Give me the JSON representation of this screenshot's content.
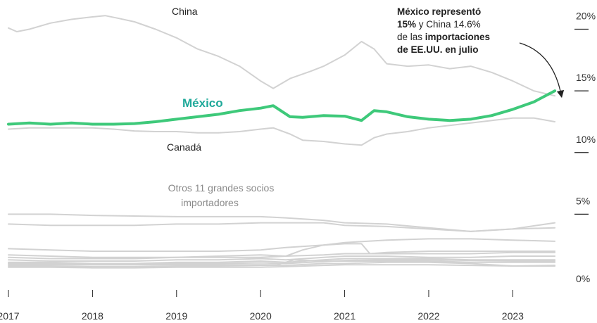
{
  "chart_data": {
    "type": "line",
    "x_ticks": [
      "2017",
      "2018",
      "2019",
      "2020",
      "2021",
      "2022",
      "2023"
    ],
    "y_ticks": [
      {
        "value": 20,
        "label": "20%"
      },
      {
        "value": 15,
        "label": "15%"
      },
      {
        "value": 10,
        "label": "10%"
      },
      {
        "value": 5,
        "label": "5%"
      },
      {
        "value": 0,
        "label": "0%"
      }
    ],
    "ylim": [
      0,
      21
    ],
    "xlim": [
      2017.0,
      2023.6
    ],
    "colors": {
      "highlight": "#3ec97a",
      "highlight_label": "#1fa99a",
      "context": "#d2d2d2",
      "text": "#222222",
      "muted_text": "#8a8a8a"
    },
    "labels": {
      "china": "China",
      "mexico": "México",
      "canada": "Canadá",
      "others_line1": "Otros 11 grandes socios",
      "others_line2": "importadores"
    },
    "annotation": {
      "line1": "México representó",
      "line2_bold": "15%",
      "line2_rest": " y China 14.6%",
      "line3_pre": "de las ",
      "line3_bold": "importaciones",
      "line4": "de EE.UU. en julio"
    },
    "series": [
      {
        "name": "México",
        "highlight": true,
        "points": [
          [
            2017.0,
            12.3
          ],
          [
            2017.25,
            12.4
          ],
          [
            2017.5,
            12.3
          ],
          [
            2017.75,
            12.4
          ],
          [
            2018.0,
            12.3
          ],
          [
            2018.25,
            12.3
          ],
          [
            2018.5,
            12.35
          ],
          [
            2018.75,
            12.5
          ],
          [
            2019.0,
            12.7
          ],
          [
            2019.25,
            12.9
          ],
          [
            2019.5,
            13.1
          ],
          [
            2019.75,
            13.4
          ],
          [
            2020.0,
            13.6
          ],
          [
            2020.15,
            13.8
          ],
          [
            2020.35,
            12.9
          ],
          [
            2020.5,
            12.85
          ],
          [
            2020.75,
            13.0
          ],
          [
            2021.0,
            12.95
          ],
          [
            2021.2,
            12.6
          ],
          [
            2021.35,
            13.4
          ],
          [
            2021.5,
            13.3
          ],
          [
            2021.75,
            12.9
          ],
          [
            2022.0,
            12.7
          ],
          [
            2022.25,
            12.6
          ],
          [
            2022.5,
            12.7
          ],
          [
            2022.75,
            13.0
          ],
          [
            2023.0,
            13.5
          ],
          [
            2023.25,
            14.1
          ],
          [
            2023.5,
            15.0
          ]
        ]
      },
      {
        "name": "China",
        "points": [
          [
            2017.0,
            20.1
          ],
          [
            2017.1,
            19.8
          ],
          [
            2017.25,
            20.0
          ],
          [
            2017.5,
            20.5
          ],
          [
            2017.75,
            20.8
          ],
          [
            2018.0,
            21.0
          ],
          [
            2018.15,
            21.1
          ],
          [
            2018.3,
            20.9
          ],
          [
            2018.5,
            20.6
          ],
          [
            2018.75,
            20.0
          ],
          [
            2019.0,
            19.3
          ],
          [
            2019.25,
            18.4
          ],
          [
            2019.5,
            17.8
          ],
          [
            2019.75,
            17.0
          ],
          [
            2020.0,
            15.8
          ],
          [
            2020.15,
            15.2
          ],
          [
            2020.35,
            16.0
          ],
          [
            2020.6,
            16.6
          ],
          [
            2020.75,
            17.0
          ],
          [
            2021.0,
            17.9
          ],
          [
            2021.2,
            19.0
          ],
          [
            2021.35,
            18.4
          ],
          [
            2021.5,
            17.2
          ],
          [
            2021.75,
            17.0
          ],
          [
            2022.0,
            17.1
          ],
          [
            2022.25,
            16.8
          ],
          [
            2022.5,
            17.0
          ],
          [
            2022.75,
            16.5
          ],
          [
            2023.0,
            15.8
          ],
          [
            2023.25,
            15.0
          ],
          [
            2023.5,
            14.6
          ]
        ]
      },
      {
        "name": "Canadá",
        "points": [
          [
            2017.0,
            11.9
          ],
          [
            2017.25,
            12.0
          ],
          [
            2017.5,
            12.0
          ],
          [
            2017.75,
            12.0
          ],
          [
            2018.0,
            12.0
          ],
          [
            2018.25,
            11.9
          ],
          [
            2018.5,
            11.75
          ],
          [
            2018.75,
            11.7
          ],
          [
            2019.0,
            11.7
          ],
          [
            2019.25,
            11.6
          ],
          [
            2019.5,
            11.6
          ],
          [
            2019.75,
            11.7
          ],
          [
            2020.0,
            11.9
          ],
          [
            2020.15,
            12.0
          ],
          [
            2020.35,
            11.5
          ],
          [
            2020.5,
            11.0
          ],
          [
            2020.75,
            10.9
          ],
          [
            2021.0,
            10.7
          ],
          [
            2021.2,
            10.6
          ],
          [
            2021.35,
            11.2
          ],
          [
            2021.5,
            11.5
          ],
          [
            2021.75,
            11.7
          ],
          [
            2022.0,
            12.0
          ],
          [
            2022.25,
            12.2
          ],
          [
            2022.5,
            12.4
          ],
          [
            2022.75,
            12.6
          ],
          [
            2023.0,
            12.8
          ],
          [
            2023.25,
            12.8
          ],
          [
            2023.5,
            12.5
          ]
        ]
      },
      {
        "name": "",
        "points": [
          [
            2017.0,
            5.0
          ],
          [
            2017.5,
            5.0
          ],
          [
            2018.0,
            4.9
          ],
          [
            2018.5,
            4.85
          ],
          [
            2019.0,
            4.8
          ],
          [
            2019.5,
            4.8
          ],
          [
            2020.0,
            4.8
          ],
          [
            2020.3,
            4.7
          ],
          [
            2020.75,
            4.5
          ],
          [
            2021.0,
            4.3
          ],
          [
            2021.5,
            4.2
          ],
          [
            2022.0,
            3.9
          ],
          [
            2022.5,
            3.6
          ],
          [
            2023.0,
            3.8
          ],
          [
            2023.5,
            4.3
          ]
        ]
      },
      {
        "name": "",
        "points": [
          [
            2017.0,
            4.2
          ],
          [
            2017.5,
            4.1
          ],
          [
            2018.0,
            4.1
          ],
          [
            2018.5,
            4.1
          ],
          [
            2019.0,
            4.2
          ],
          [
            2019.5,
            4.2
          ],
          [
            2020.0,
            4.3
          ],
          [
            2020.3,
            4.3
          ],
          [
            2020.75,
            4.3
          ],
          [
            2021.0,
            4.1
          ],
          [
            2021.5,
            4.0
          ],
          [
            2022.0,
            3.8
          ],
          [
            2022.5,
            3.6
          ],
          [
            2023.0,
            3.8
          ],
          [
            2023.5,
            3.9
          ]
        ]
      },
      {
        "name": "",
        "points": [
          [
            2017.0,
            2.2
          ],
          [
            2017.5,
            2.1
          ],
          [
            2018.0,
            2.0
          ],
          [
            2018.5,
            2.0
          ],
          [
            2019.0,
            2.0
          ],
          [
            2019.5,
            2.0
          ],
          [
            2020.0,
            2.1
          ],
          [
            2020.3,
            2.3
          ],
          [
            2020.75,
            2.5
          ],
          [
            2021.0,
            2.7
          ],
          [
            2021.5,
            2.9
          ],
          [
            2022.0,
            3.0
          ],
          [
            2022.5,
            3.0
          ],
          [
            2023.0,
            2.9
          ],
          [
            2023.5,
            2.8
          ]
        ]
      },
      {
        "name": "",
        "points": [
          [
            2017.0,
            1.7
          ],
          [
            2017.5,
            1.6
          ],
          [
            2018.0,
            1.5
          ],
          [
            2018.5,
            1.5
          ],
          [
            2019.0,
            1.5
          ],
          [
            2019.5,
            1.6
          ],
          [
            2020.0,
            1.7
          ],
          [
            2020.3,
            1.6
          ],
          [
            2020.5,
            2.1
          ],
          [
            2020.75,
            2.5
          ],
          [
            2021.0,
            2.6
          ],
          [
            2021.2,
            2.6
          ],
          [
            2021.3,
            1.8
          ],
          [
            2021.5,
            1.9
          ],
          [
            2022.0,
            2.0
          ],
          [
            2022.5,
            2.0
          ],
          [
            2023.0,
            2.0
          ],
          [
            2023.5,
            2.0
          ]
        ]
      },
      {
        "name": "",
        "points": [
          [
            2017.0,
            1.5
          ],
          [
            2017.5,
            1.4
          ],
          [
            2018.0,
            1.4
          ],
          [
            2018.5,
            1.4
          ],
          [
            2019.0,
            1.5
          ],
          [
            2019.5,
            1.5
          ],
          [
            2020.0,
            1.5
          ],
          [
            2020.3,
            1.6
          ],
          [
            2020.75,
            1.7
          ],
          [
            2021.0,
            1.8
          ],
          [
            2021.5,
            1.8
          ],
          [
            2022.0,
            1.8
          ],
          [
            2022.5,
            1.8
          ],
          [
            2023.0,
            1.9
          ],
          [
            2023.5,
            1.9
          ]
        ]
      },
      {
        "name": "",
        "points": [
          [
            2017.0,
            1.3
          ],
          [
            2017.5,
            1.2
          ],
          [
            2018.0,
            1.2
          ],
          [
            2018.5,
            1.2
          ],
          [
            2019.0,
            1.3
          ],
          [
            2019.5,
            1.3
          ],
          [
            2020.0,
            1.4
          ],
          [
            2020.3,
            1.3
          ],
          [
            2020.75,
            1.5
          ],
          [
            2021.0,
            1.6
          ],
          [
            2021.5,
            1.6
          ],
          [
            2022.0,
            1.5
          ],
          [
            2022.5,
            1.5
          ],
          [
            2023.0,
            1.6
          ],
          [
            2023.5,
            1.6
          ]
        ]
      },
      {
        "name": "",
        "points": [
          [
            2017.0,
            1.1
          ],
          [
            2017.5,
            1.1
          ],
          [
            2018.0,
            1.0
          ],
          [
            2018.5,
            1.0
          ],
          [
            2019.0,
            1.1
          ],
          [
            2019.5,
            1.1
          ],
          [
            2020.0,
            1.2
          ],
          [
            2020.3,
            1.1
          ],
          [
            2020.75,
            1.3
          ],
          [
            2021.0,
            1.4
          ],
          [
            2021.5,
            1.4
          ],
          [
            2022.0,
            1.4
          ],
          [
            2022.5,
            1.3
          ],
          [
            2023.0,
            1.3
          ],
          [
            2023.5,
            1.3
          ]
        ]
      },
      {
        "name": "",
        "points": [
          [
            2017.0,
            0.9
          ],
          [
            2017.5,
            0.9
          ],
          [
            2018.0,
            0.9
          ],
          [
            2018.5,
            0.9
          ],
          [
            2019.0,
            0.9
          ],
          [
            2019.5,
            0.9
          ],
          [
            2020.0,
            0.9
          ],
          [
            2020.2,
            0.9
          ],
          [
            2020.4,
            1.3
          ],
          [
            2020.75,
            1.2
          ],
          [
            2021.0,
            1.2
          ],
          [
            2021.5,
            1.2
          ],
          [
            2022.0,
            1.2
          ],
          [
            2022.5,
            1.1
          ],
          [
            2023.0,
            1.1
          ],
          [
            2023.5,
            1.1
          ]
        ]
      },
      {
        "name": "",
        "points": [
          [
            2017.0,
            0.8
          ],
          [
            2017.5,
            0.8
          ],
          [
            2018.0,
            0.75
          ],
          [
            2018.5,
            0.75
          ],
          [
            2019.0,
            0.8
          ],
          [
            2019.5,
            0.8
          ],
          [
            2020.0,
            0.85
          ],
          [
            2020.3,
            0.85
          ],
          [
            2020.75,
            1.0
          ],
          [
            2021.0,
            1.0
          ],
          [
            2021.5,
            1.1
          ],
          [
            2022.0,
            1.1
          ],
          [
            2022.5,
            1.0
          ],
          [
            2023.0,
            0.8
          ],
          [
            2023.5,
            0.85
          ]
        ]
      },
      {
        "name": "",
        "points": [
          [
            2017.0,
            0.7
          ],
          [
            2017.5,
            0.7
          ],
          [
            2018.0,
            0.65
          ],
          [
            2018.5,
            0.65
          ],
          [
            2019.0,
            0.7
          ],
          [
            2019.5,
            0.7
          ],
          [
            2020.0,
            0.7
          ],
          [
            2020.3,
            0.75
          ],
          [
            2020.75,
            0.85
          ],
          [
            2021.0,
            0.9
          ],
          [
            2021.5,
            0.9
          ],
          [
            2022.0,
            0.9
          ],
          [
            2022.5,
            0.85
          ],
          [
            2023.0,
            0.8
          ],
          [
            2023.5,
            0.8
          ]
        ]
      },
      {
        "name": "",
        "points": [
          [
            2017.0,
            1.0
          ],
          [
            2017.5,
            1.0
          ],
          [
            2018.0,
            0.95
          ],
          [
            2018.5,
            0.95
          ],
          [
            2019.0,
            1.0
          ],
          [
            2019.5,
            1.0
          ],
          [
            2020.0,
            1.05
          ],
          [
            2020.3,
            1.0
          ],
          [
            2020.75,
            1.15
          ],
          [
            2021.0,
            1.25
          ],
          [
            2021.5,
            1.3
          ],
          [
            2022.0,
            1.3
          ],
          [
            2022.5,
            1.25
          ],
          [
            2023.0,
            1.2
          ],
          [
            2023.5,
            1.2
          ]
        ]
      }
    ]
  }
}
